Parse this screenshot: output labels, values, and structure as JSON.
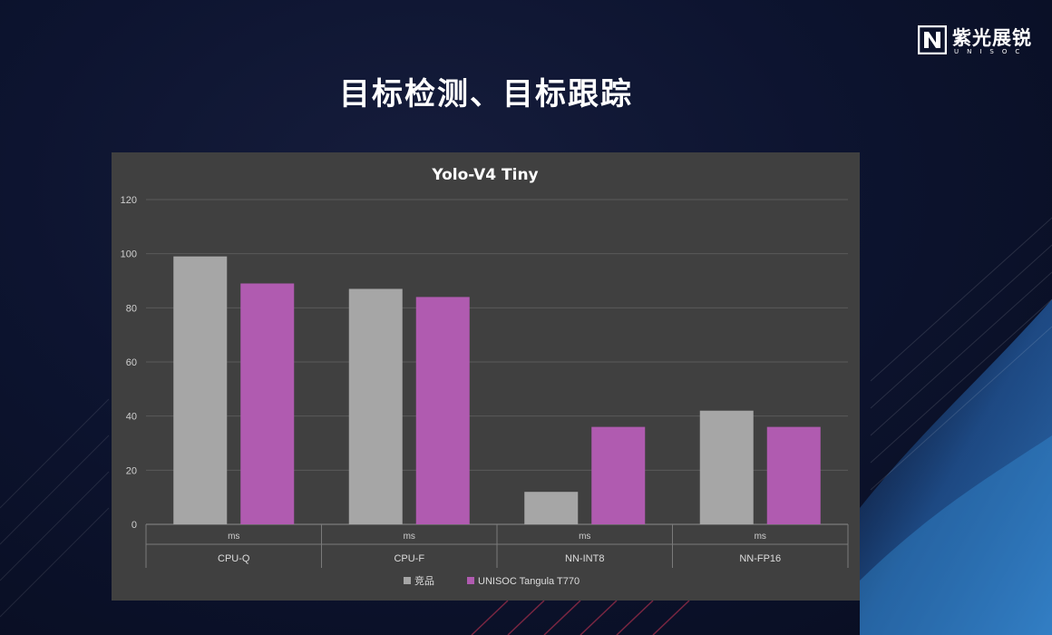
{
  "slide": {
    "title": "目标检测、目标跟踪"
  },
  "logo": {
    "name": "紫光展锐",
    "sub": "UNISOC",
    "icon": "unisoc-logo-icon"
  },
  "colors": {
    "background": "#0d1430",
    "panel": "#404040",
    "series_gray": "#a6a6a6",
    "series_purple": "#b05bb0",
    "title": "#ffffff"
  },
  "chart_data": {
    "type": "bar",
    "title": "Yolo-V4 Tiny",
    "unit_label": "ms",
    "categories": [
      "CPU-Q",
      "CPU-F",
      "NN-INT8",
      "NN-FP16"
    ],
    "series": [
      {
        "name": "竞品",
        "values": [
          99,
          87,
          12,
          42
        ]
      },
      {
        "name": "UNISOC Tangula T770",
        "values": [
          89,
          84,
          36,
          36
        ]
      }
    ],
    "yticks": [
      0,
      20,
      40,
      60,
      80,
      100,
      120
    ],
    "ylim": [
      0,
      120
    ],
    "grid": true,
    "legend": "bottom"
  }
}
